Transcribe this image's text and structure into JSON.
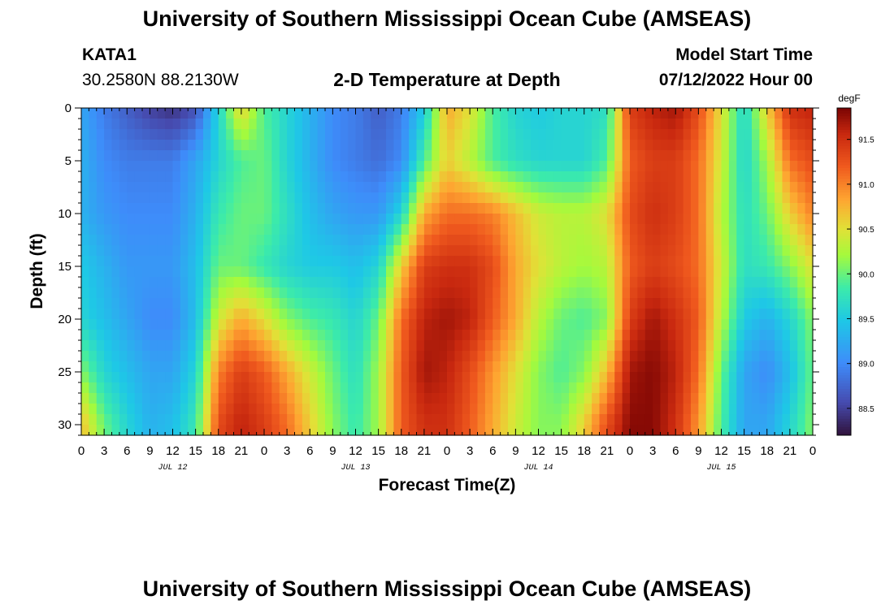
{
  "header": {
    "title": "University of Southern Mississippi Ocean Cube (AMSEAS)",
    "station_id": "KATA1",
    "coordinates": "30.2580N  88.2130W",
    "plot_title": "2-D Temperature at Depth",
    "model_start_label": "Model Start Time",
    "model_start_value": "07/12/2022 Hour 00"
  },
  "footer": {
    "title": "University of Southern Mississippi Ocean Cube (AMSEAS)"
  },
  "chart_data": {
    "type": "heatmap",
    "title": "2-D Temperature at Depth",
    "xlabel": "Forecast Time(Z)",
    "ylabel": "Depth (ft)",
    "x_unit": "hours since model start",
    "xlim": [
      0,
      96
    ],
    "ylim": [
      0,
      31
    ],
    "y_inverted": true,
    "x_tick_labels": [
      "0",
      "3",
      "6",
      "9",
      "12",
      "15",
      "18",
      "21",
      "0",
      "3",
      "6",
      "9",
      "12",
      "15",
      "18",
      "21",
      "0",
      "3",
      "6",
      "9",
      "12",
      "15",
      "18",
      "21",
      "0",
      "3",
      "6",
      "9",
      "12",
      "15",
      "18",
      "21",
      "0"
    ],
    "y_ticks": [
      0,
      5,
      10,
      15,
      20,
      25,
      30
    ],
    "date_labels": [
      {
        "hour": 12,
        "label": "JUL 12"
      },
      {
        "hour": 36,
        "label": "JUL 13"
      },
      {
        "hour": 60,
        "label": "JUL 14"
      },
      {
        "hour": 84,
        "label": "JUL 15"
      }
    ],
    "colorbar": {
      "unit": "degF",
      "min": 88.2,
      "max": 91.85,
      "ticks": [
        88.5,
        89.0,
        89.5,
        90.0,
        90.5,
        91.0,
        91.5
      ],
      "tick_labels": [
        "88.5",
        "89.0",
        "89.5",
        "90.0",
        "90.5",
        "91.0",
        "91.5"
      ]
    },
    "depths_ft": [
      0,
      5,
      10,
      15,
      20,
      25,
      30
    ],
    "hours": [
      0,
      3,
      6,
      9,
      12,
      15,
      18,
      21,
      24,
      27,
      30,
      33,
      36,
      39,
      42,
      45,
      48,
      51,
      54,
      57,
      60,
      63,
      66,
      69,
      72,
      75,
      78,
      81,
      84,
      87,
      90,
      93,
      96
    ],
    "values_degF": [
      [
        89.2,
        88.9,
        88.7,
        88.5,
        88.4,
        88.6,
        89.6,
        90.6,
        89.9,
        89.6,
        89.3,
        89.0,
        88.9,
        88.7,
        88.9,
        89.5,
        90.8,
        90.5,
        89.9,
        89.6,
        89.5,
        89.6,
        89.6,
        89.7,
        91.4,
        91.6,
        91.7,
        91.3,
        90.5,
        89.6,
        90.6,
        91.5,
        91.6
      ],
      [
        89.3,
        89.0,
        88.9,
        88.9,
        88.9,
        89.2,
        89.6,
        89.9,
        90.0,
        89.6,
        89.3,
        89.0,
        88.9,
        88.8,
        89.0,
        89.9,
        90.6,
        90.3,
        89.9,
        89.7,
        89.6,
        89.6,
        89.6,
        89.9,
        91.2,
        91.4,
        91.4,
        91.1,
        90.4,
        89.6,
        90.2,
        91.1,
        91.3
      ],
      [
        89.3,
        89.1,
        89.0,
        89.0,
        89.0,
        89.3,
        89.8,
        90.0,
        90.0,
        89.7,
        89.4,
        89.2,
        89.1,
        89.1,
        89.6,
        90.8,
        91.1,
        91.1,
        91.0,
        90.7,
        90.4,
        90.3,
        90.3,
        90.5,
        91.3,
        91.5,
        91.4,
        91.1,
        90.3,
        89.7,
        90.0,
        90.6,
        91.0
      ],
      [
        89.5,
        89.3,
        89.1,
        89.1,
        89.1,
        89.4,
        90.0,
        90.0,
        89.8,
        89.6,
        89.5,
        89.5,
        89.4,
        89.6,
        90.6,
        91.4,
        91.5,
        91.5,
        91.3,
        90.8,
        90.5,
        90.3,
        90.2,
        90.3,
        91.2,
        91.4,
        91.3,
        91.1,
        90.4,
        89.7,
        89.8,
        90.1,
        90.5
      ],
      [
        89.6,
        89.4,
        89.2,
        89.0,
        89.0,
        89.4,
        90.4,
        90.8,
        90.5,
        90.1,
        89.9,
        89.8,
        89.6,
        90.0,
        91.1,
        91.6,
        91.7,
        91.6,
        91.2,
        90.8,
        90.3,
        90.0,
        89.9,
        90.1,
        91.4,
        91.7,
        91.5,
        91.2,
        90.3,
        89.5,
        89.3,
        89.6,
        90.1
      ],
      [
        90.1,
        89.6,
        89.4,
        89.2,
        89.2,
        89.6,
        91.0,
        91.4,
        91.2,
        90.8,
        90.4,
        90.0,
        89.7,
        90.2,
        91.2,
        91.7,
        91.6,
        91.3,
        90.9,
        90.5,
        90.1,
        89.9,
        90.1,
        90.7,
        91.7,
        91.8,
        91.6,
        91.1,
        90.0,
        89.2,
        89.0,
        89.4,
        90.0
      ],
      [
        90.7,
        90.0,
        89.6,
        89.3,
        89.4,
        89.8,
        91.3,
        91.6,
        91.4,
        91.1,
        90.6,
        90.1,
        89.8,
        90.2,
        91.2,
        91.5,
        91.5,
        91.2,
        90.8,
        90.4,
        90.1,
        90.1,
        90.6,
        91.3,
        91.8,
        91.8,
        91.5,
        90.9,
        89.9,
        89.2,
        89.2,
        89.6,
        90.1
      ]
    ]
  }
}
